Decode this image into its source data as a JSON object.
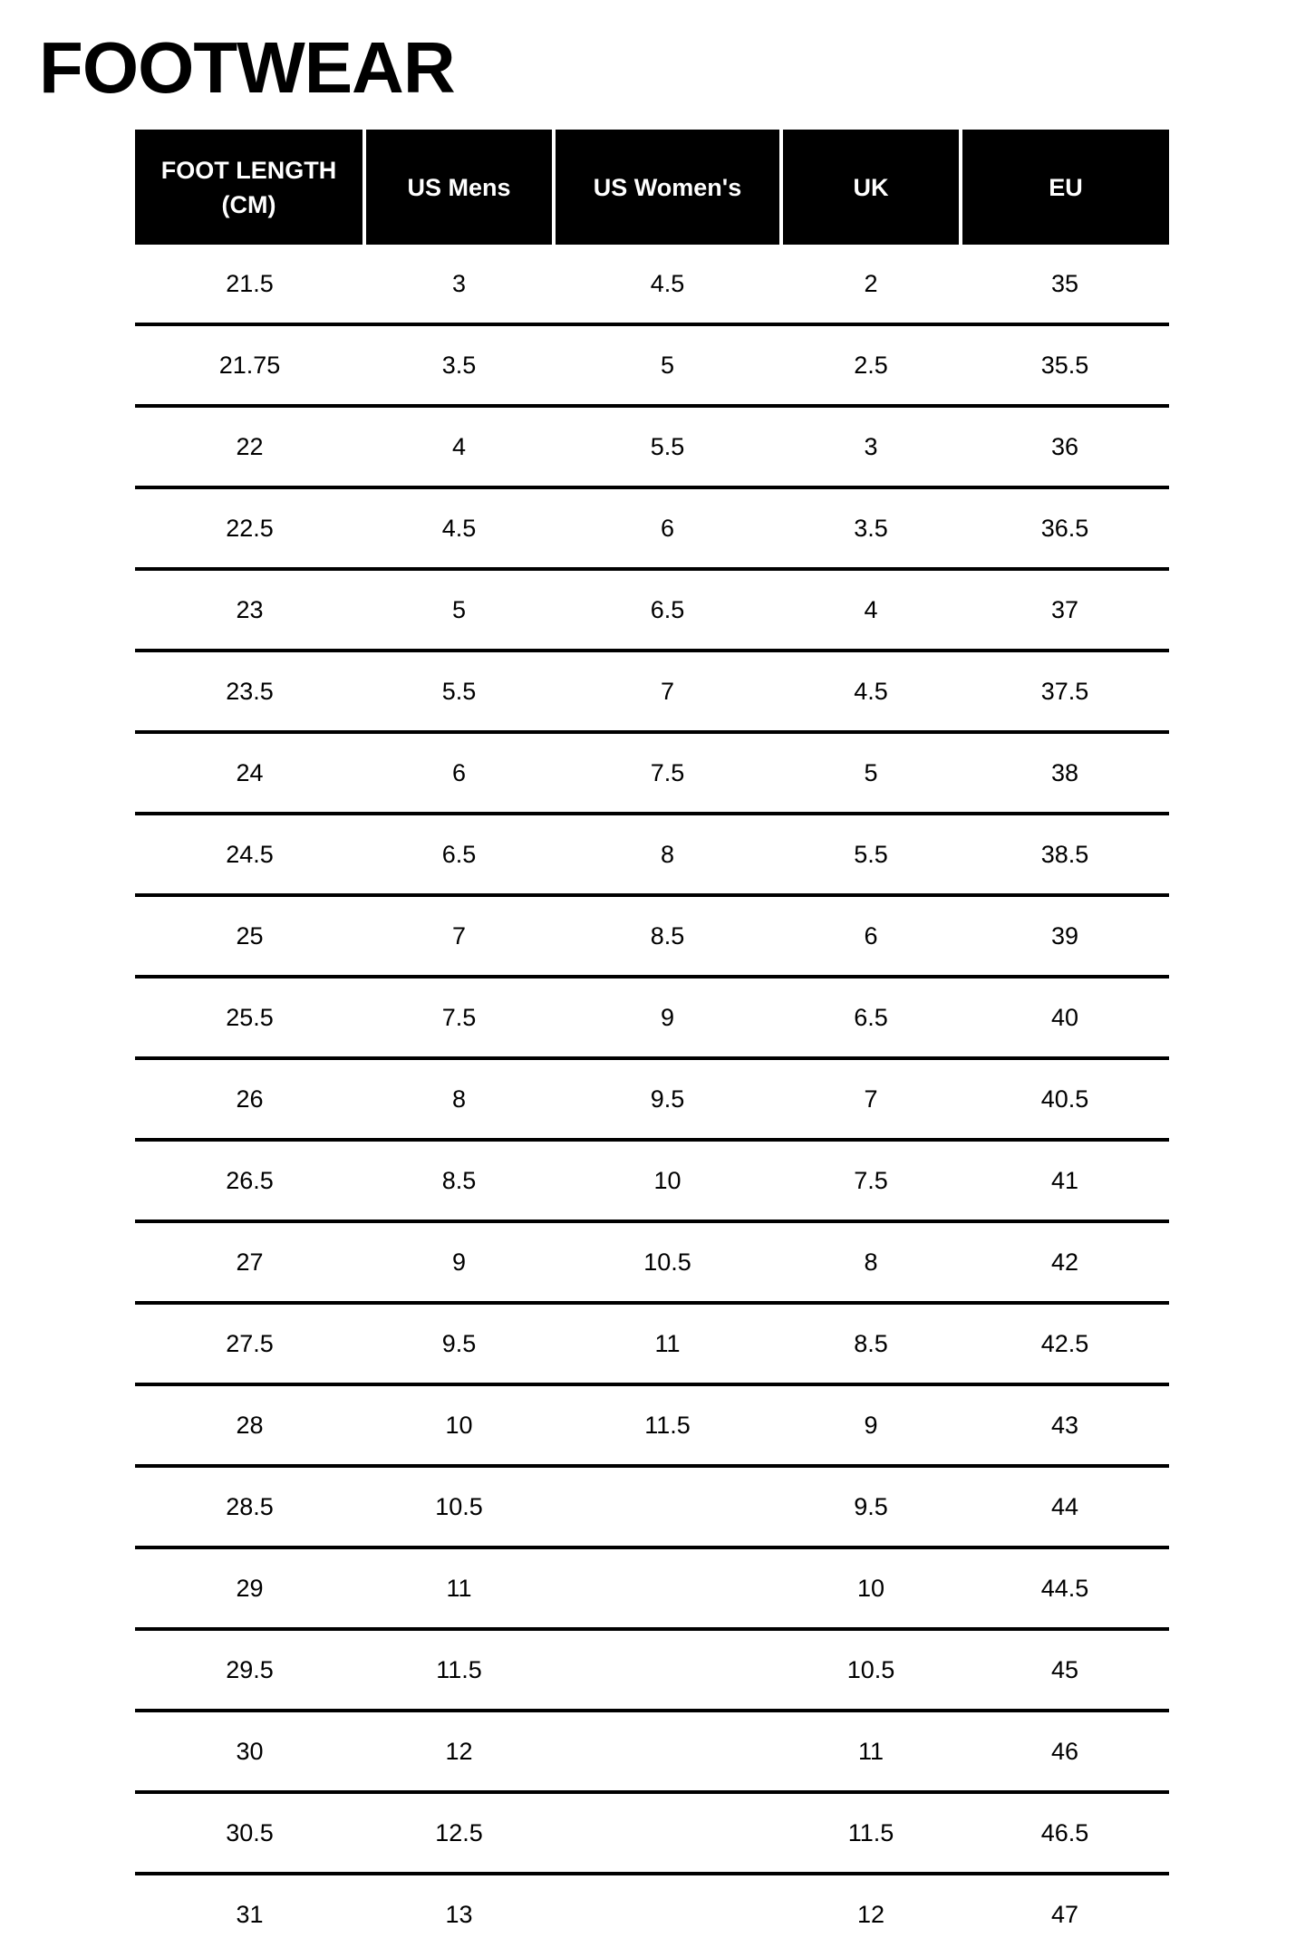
{
  "title": "FOOTWEAR",
  "table": {
    "headers": [
      "FOOT LENGTH (CM)",
      "US Mens",
      "US Women's",
      "UK",
      "EU"
    ],
    "rows": [
      [
        "21.5",
        "3",
        "4.5",
        "2",
        "35"
      ],
      [
        "21.75",
        "3.5",
        "5",
        "2.5",
        "35.5"
      ],
      [
        "22",
        "4",
        "5.5",
        "3",
        "36"
      ],
      [
        "22.5",
        "4.5",
        "6",
        "3.5",
        "36.5"
      ],
      [
        "23",
        "5",
        "6.5",
        "4",
        "37"
      ],
      [
        "23.5",
        "5.5",
        "7",
        "4.5",
        "37.5"
      ],
      [
        "24",
        "6",
        "7.5",
        "5",
        "38"
      ],
      [
        "24.5",
        "6.5",
        "8",
        "5.5",
        "38.5"
      ],
      [
        "25",
        "7",
        "8.5",
        "6",
        "39"
      ],
      [
        "25.5",
        "7.5",
        "9",
        "6.5",
        "40"
      ],
      [
        "26",
        "8",
        "9.5",
        "7",
        "40.5"
      ],
      [
        "26.5",
        "8.5",
        "10",
        "7.5",
        "41"
      ],
      [
        "27",
        "9",
        "10.5",
        "8",
        "42"
      ],
      [
        "27.5",
        "9.5",
        "11",
        "8.5",
        "42.5"
      ],
      [
        "28",
        "10",
        "11.5",
        "9",
        "43"
      ],
      [
        "28.5",
        "10.5",
        "",
        "9.5",
        "44"
      ],
      [
        "29",
        "11",
        "",
        "10",
        "44.5"
      ],
      [
        "29.5",
        "11.5",
        "",
        "10.5",
        "45"
      ],
      [
        "30",
        "12",
        "",
        "11",
        "46"
      ],
      [
        "30.5",
        "12.5",
        "",
        "11.5",
        "46.5"
      ],
      [
        "31",
        "13",
        "",
        "12",
        "47"
      ]
    ]
  }
}
